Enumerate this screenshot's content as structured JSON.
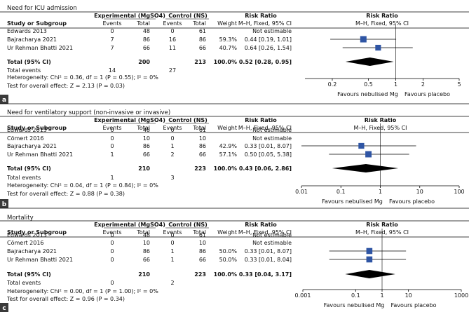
{
  "panels": [
    {
      "letter": "a",
      "title": "Need for ICU admission",
      "headers": {
        "exp_group": "Experimental (MgSO4)",
        "ctl_group": "Control (NS)",
        "rr_group": "Risk Ratio",
        "plot_group": "Risk Ratio",
        "study": "Study or Subgroup",
        "exp_events": "Events",
        "exp_total": "Total",
        "ctl_events": "Events",
        "ctl_total": "Total",
        "weight": "Weight",
        "rr_method": "M–H, Fixed, 95% CI",
        "plot_method": "M–H, Fixed, 95% CI"
      },
      "total": {
        "label": "Total (95% CI)",
        "exp_total": "200",
        "ctl_total": "213",
        "weight": "100.0%",
        "rr": "0.52 [0.28, 0.95]"
      },
      "total_events": {
        "label": "Total events",
        "exp": "14",
        "ctl": "27"
      },
      "heterogeneity": "Heterogeneity: Chi² = 0.36, df = 1 (P = 0.55); I² = 0%",
      "overall": "Test for overall effect: Z = 2.13 (P = 0.03)",
      "favours_left": "Favours nebulised Mg",
      "favours_right": "Favours placebo"
    },
    {
      "letter": "b",
      "title": "Need for ventilatory support (non-invasive or invasive)",
      "headers": {
        "exp_group": "Experimental (MgSO4)",
        "ctl_group": "Control (NS)",
        "rr_group": "Risk Ratio",
        "plot_group": "Risk Ratio",
        "study": "Study or Subgroup",
        "exp_events": "Events",
        "exp_total": "Total",
        "ctl_events": "Events",
        "ctl_total": "Total",
        "weight": "Weight",
        "rr_method": "M–H, Fixed, 95% CI",
        "plot_method": "M–H, Fixed, 95% CI"
      },
      "total": {
        "label": "Total (95% CI)",
        "exp_total": "210",
        "ctl_total": "223",
        "weight": "100.0%",
        "rr": "0.43 [0.06, 2.86]"
      },
      "total_events": {
        "label": "Total events",
        "exp": "1",
        "ctl": "3"
      },
      "heterogeneity": "Heterogeneity: Chi² = 0.04, df = 1 (P = 0.84); I² = 0%",
      "overall": "Test for overall effect: Z = 0.88 (P = 0.38)",
      "favours_left": "Favours nebulised Mg",
      "favours_right": "Favours placebo"
    },
    {
      "letter": "c",
      "title": "Mortality",
      "headers": {
        "exp_group": "Experimental (MgSO4)",
        "ctl_group": "Control (NS)",
        "rr_group": "Risk Ratio",
        "plot_group": "Risk Ratio",
        "study": "Study or Subgroup",
        "exp_events": "Events",
        "exp_total": "Total",
        "ctl_events": "Events",
        "ctl_total": "Total",
        "weight": "Weight",
        "rr_method": "M–H, Fixed, 95% CI",
        "plot_method": "M–H, Fixed, 95% CI"
      },
      "total": {
        "label": "Total (95% CI)",
        "exp_total": "210",
        "ctl_total": "223",
        "weight": "100.0%",
        "rr": "0.33 [0.04, 3.17]"
      },
      "total_events": {
        "label": "Total events",
        "exp": "0",
        "ctl": "2"
      },
      "heterogeneity": "Heterogeneity: Chi² = 0.00, df = 1 (P = 1.00); I² = 0%",
      "overall": "Test for overall effect: Z = 0.96 (P = 0.34)",
      "favours_left": "Favours nebulised Mg",
      "favours_right": "Favours placebo"
    }
  ],
  "colors": {
    "square": "#2f55a4",
    "diamond": "#000000",
    "line": "#000000",
    "letter_bg": "#3a3a3a",
    "letter_fg": "#ffffff"
  },
  "chart_data": [
    {
      "type": "forest",
      "title": "Need for ICU admission",
      "scale": "log",
      "axis_range": [
        0.1,
        5
      ],
      "ticks": [
        {
          "value": 0.2,
          "label": "0.2"
        },
        {
          "value": 0.5,
          "label": "0.5"
        },
        {
          "value": 1,
          "label": "1"
        },
        {
          "value": 2,
          "label": "2"
        },
        {
          "value": 5,
          "label": "5"
        }
      ],
      "studies": [
        {
          "name": "Edwards 2013",
          "exp_events": "0",
          "exp_total": "48",
          "ctl_events": "0",
          "ctl_total": "61",
          "weight": "",
          "rr": "Not estimable",
          "est": null,
          "lo": null,
          "hi": null,
          "w": 0
        },
        {
          "name": "Bajracharya 2021",
          "exp_events": "7",
          "exp_total": "86",
          "ctl_events": "16",
          "ctl_total": "86",
          "weight": "59.3%",
          "rr": "0.44 [0.19, 1.01]",
          "est": 0.44,
          "lo": 0.19,
          "hi": 1.01,
          "w": 59.3
        },
        {
          "name": "Ur Rehman Bhatti 2021",
          "exp_events": "7",
          "exp_total": "66",
          "ctl_events": "11",
          "ctl_total": "66",
          "weight": "40.7%",
          "rr": "0.64 [0.26, 1.54]",
          "est": 0.64,
          "lo": 0.26,
          "hi": 1.54,
          "w": 40.7
        }
      ],
      "pooled": {
        "est": 0.52,
        "lo": 0.28,
        "hi": 0.95
      }
    },
    {
      "type": "forest",
      "title": "Need for ventilatory support (non-invasive or invasive)",
      "scale": "log",
      "axis_range": [
        0.01,
        100
      ],
      "ticks": [
        {
          "value": 0.01,
          "label": "0.01"
        },
        {
          "value": 0.1,
          "label": "0.1"
        },
        {
          "value": 1,
          "label": "1"
        },
        {
          "value": 10,
          "label": "10"
        },
        {
          "value": 100,
          "label": "100"
        }
      ],
      "studies": [
        {
          "name": "Edwards 2013",
          "exp_events": "0",
          "exp_total": "48",
          "ctl_events": "0",
          "ctl_total": "61",
          "weight": "",
          "rr": "Not estimable",
          "est": null,
          "lo": null,
          "hi": null,
          "w": 0
        },
        {
          "name": "Cömert 2016",
          "exp_events": "0",
          "exp_total": "10",
          "ctl_events": "0",
          "ctl_total": "10",
          "weight": "",
          "rr": "Not estimable",
          "est": null,
          "lo": null,
          "hi": null,
          "w": 0
        },
        {
          "name": "Bajracharya 2021",
          "exp_events": "0",
          "exp_total": "86",
          "ctl_events": "1",
          "ctl_total": "86",
          "weight": "42.9%",
          "rr": "0.33 [0.01, 8.07]",
          "est": 0.33,
          "lo": 0.01,
          "hi": 8.07,
          "w": 42.9
        },
        {
          "name": "Ur Rehman Bhatti 2021",
          "exp_events": "1",
          "exp_total": "66",
          "ctl_events": "2",
          "ctl_total": "66",
          "weight": "57.1%",
          "rr": "0.50 [0.05, 5.38]",
          "est": 0.5,
          "lo": 0.05,
          "hi": 5.38,
          "w": 57.1
        }
      ],
      "pooled": {
        "est": 0.43,
        "lo": 0.06,
        "hi": 2.86
      }
    },
    {
      "type": "forest",
      "title": "Mortality",
      "scale": "log",
      "axis_range": [
        0.001,
        1000
      ],
      "ticks": [
        {
          "value": 0.001,
          "label": "0.001"
        },
        {
          "value": 0.1,
          "label": "0.1"
        },
        {
          "value": 1,
          "label": "1"
        },
        {
          "value": 10,
          "label": "10"
        },
        {
          "value": 1000,
          "label": "1000"
        }
      ],
      "studies": [
        {
          "name": "Edwards 2013",
          "exp_events": "0",
          "exp_total": "48",
          "ctl_events": "0",
          "ctl_total": "61",
          "weight": "",
          "rr": "Not estimable",
          "est": null,
          "lo": null,
          "hi": null,
          "w": 0
        },
        {
          "name": "Cömert 2016",
          "exp_events": "0",
          "exp_total": "10",
          "ctl_events": "0",
          "ctl_total": "10",
          "weight": "",
          "rr": "Not estimable",
          "est": null,
          "lo": null,
          "hi": null,
          "w": 0
        },
        {
          "name": "Bajracharya 2021",
          "exp_events": "0",
          "exp_total": "86",
          "ctl_events": "1",
          "ctl_total": "86",
          "weight": "50.0%",
          "rr": "0.33 [0.01, 8.07]",
          "est": 0.33,
          "lo": 0.01,
          "hi": 8.07,
          "w": 50.0
        },
        {
          "name": "Ur Rehman Bhatti 2021",
          "exp_events": "0",
          "exp_total": "66",
          "ctl_events": "1",
          "ctl_total": "66",
          "weight": "50.0%",
          "rr": "0.33 [0.01, 8.04]",
          "est": 0.33,
          "lo": 0.01,
          "hi": 8.04,
          "w": 50.0
        }
      ],
      "pooled": {
        "est": 0.33,
        "lo": 0.04,
        "hi": 3.17
      }
    }
  ]
}
